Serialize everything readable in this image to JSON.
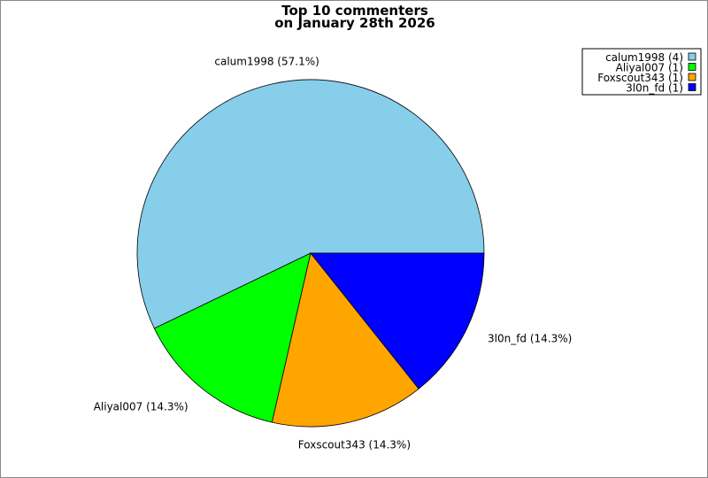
{
  "chart_data": {
    "type": "pie",
    "title": "Top 10 commenters\non January 28th 2026",
    "title_lines": [
      "Top 10 commenters",
      "on January 28th 2026"
    ],
    "categories": [
      "calum1998",
      "Aliyal007",
      "Foxscout343",
      "3l0n_fd"
    ],
    "values": [
      4,
      1,
      1,
      1
    ],
    "percent_labels": [
      "calum1998 (57.1%)",
      "Aliyal007 (14.3%)",
      "Foxscout343 (14.3%)",
      "3l0n_fd (14.3%)"
    ],
    "legend_labels": [
      "calum1998 (4)",
      "Aliyal007 (1)",
      "Foxscout343 (1)",
      "3l0n_fd (1)"
    ],
    "colors": [
      "#87ceeb",
      "#00ff00",
      "#ffa500",
      "#0000ff"
    ],
    "legend_position": "top-right",
    "start_angle_deg": 0,
    "direction": "counterclockwise"
  }
}
